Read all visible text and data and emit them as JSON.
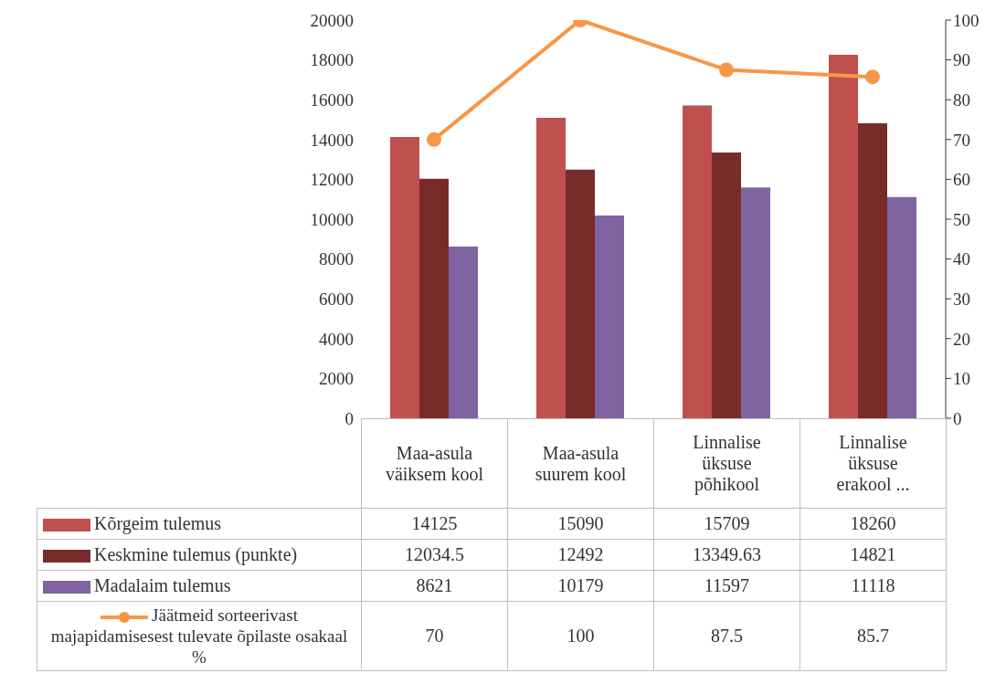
{
  "chart_data": {
    "type": "bar",
    "categories": [
      "Maa-asula väiksem kool",
      "Maa-asula suurem kool",
      "Linnalise üksuse põhikool",
      "Linnalise üksuse erakool ..."
    ],
    "series": [
      {
        "name": "Kõrgeim tulemus",
        "color": "#c0504d",
        "values": [
          14125,
          15090,
          15709,
          18260
        ]
      },
      {
        "name": "Keskmine tulemus (punkte)",
        "color": "#772c2a",
        "values": [
          12034.5,
          12492,
          13349.63,
          14821
        ]
      },
      {
        "name": "Madalaim tulemus",
        "color": "#8064a2",
        "values": [
          8621,
          10179,
          11597,
          11118
        ]
      },
      {
        "name": "Jäätmeid sorteerivast majapidamisesest tulevate õpilaste osakaal %",
        "color": "#f79646",
        "values": [
          70,
          100,
          87.5,
          85.7
        ],
        "type": "line",
        "axis": "y2"
      }
    ],
    "ylim": [
      0,
      20000
    ],
    "yticks": [
      0,
      2000,
      4000,
      6000,
      8000,
      10000,
      12000,
      14000,
      16000,
      18000,
      20000
    ],
    "y2lim": [
      0,
      100
    ],
    "y2ticks": [
      0,
      10,
      20,
      30,
      40,
      50,
      60,
      70,
      80,
      90,
      100
    ],
    "legend": "bottom",
    "data_labels": true,
    "marker": "circle"
  }
}
